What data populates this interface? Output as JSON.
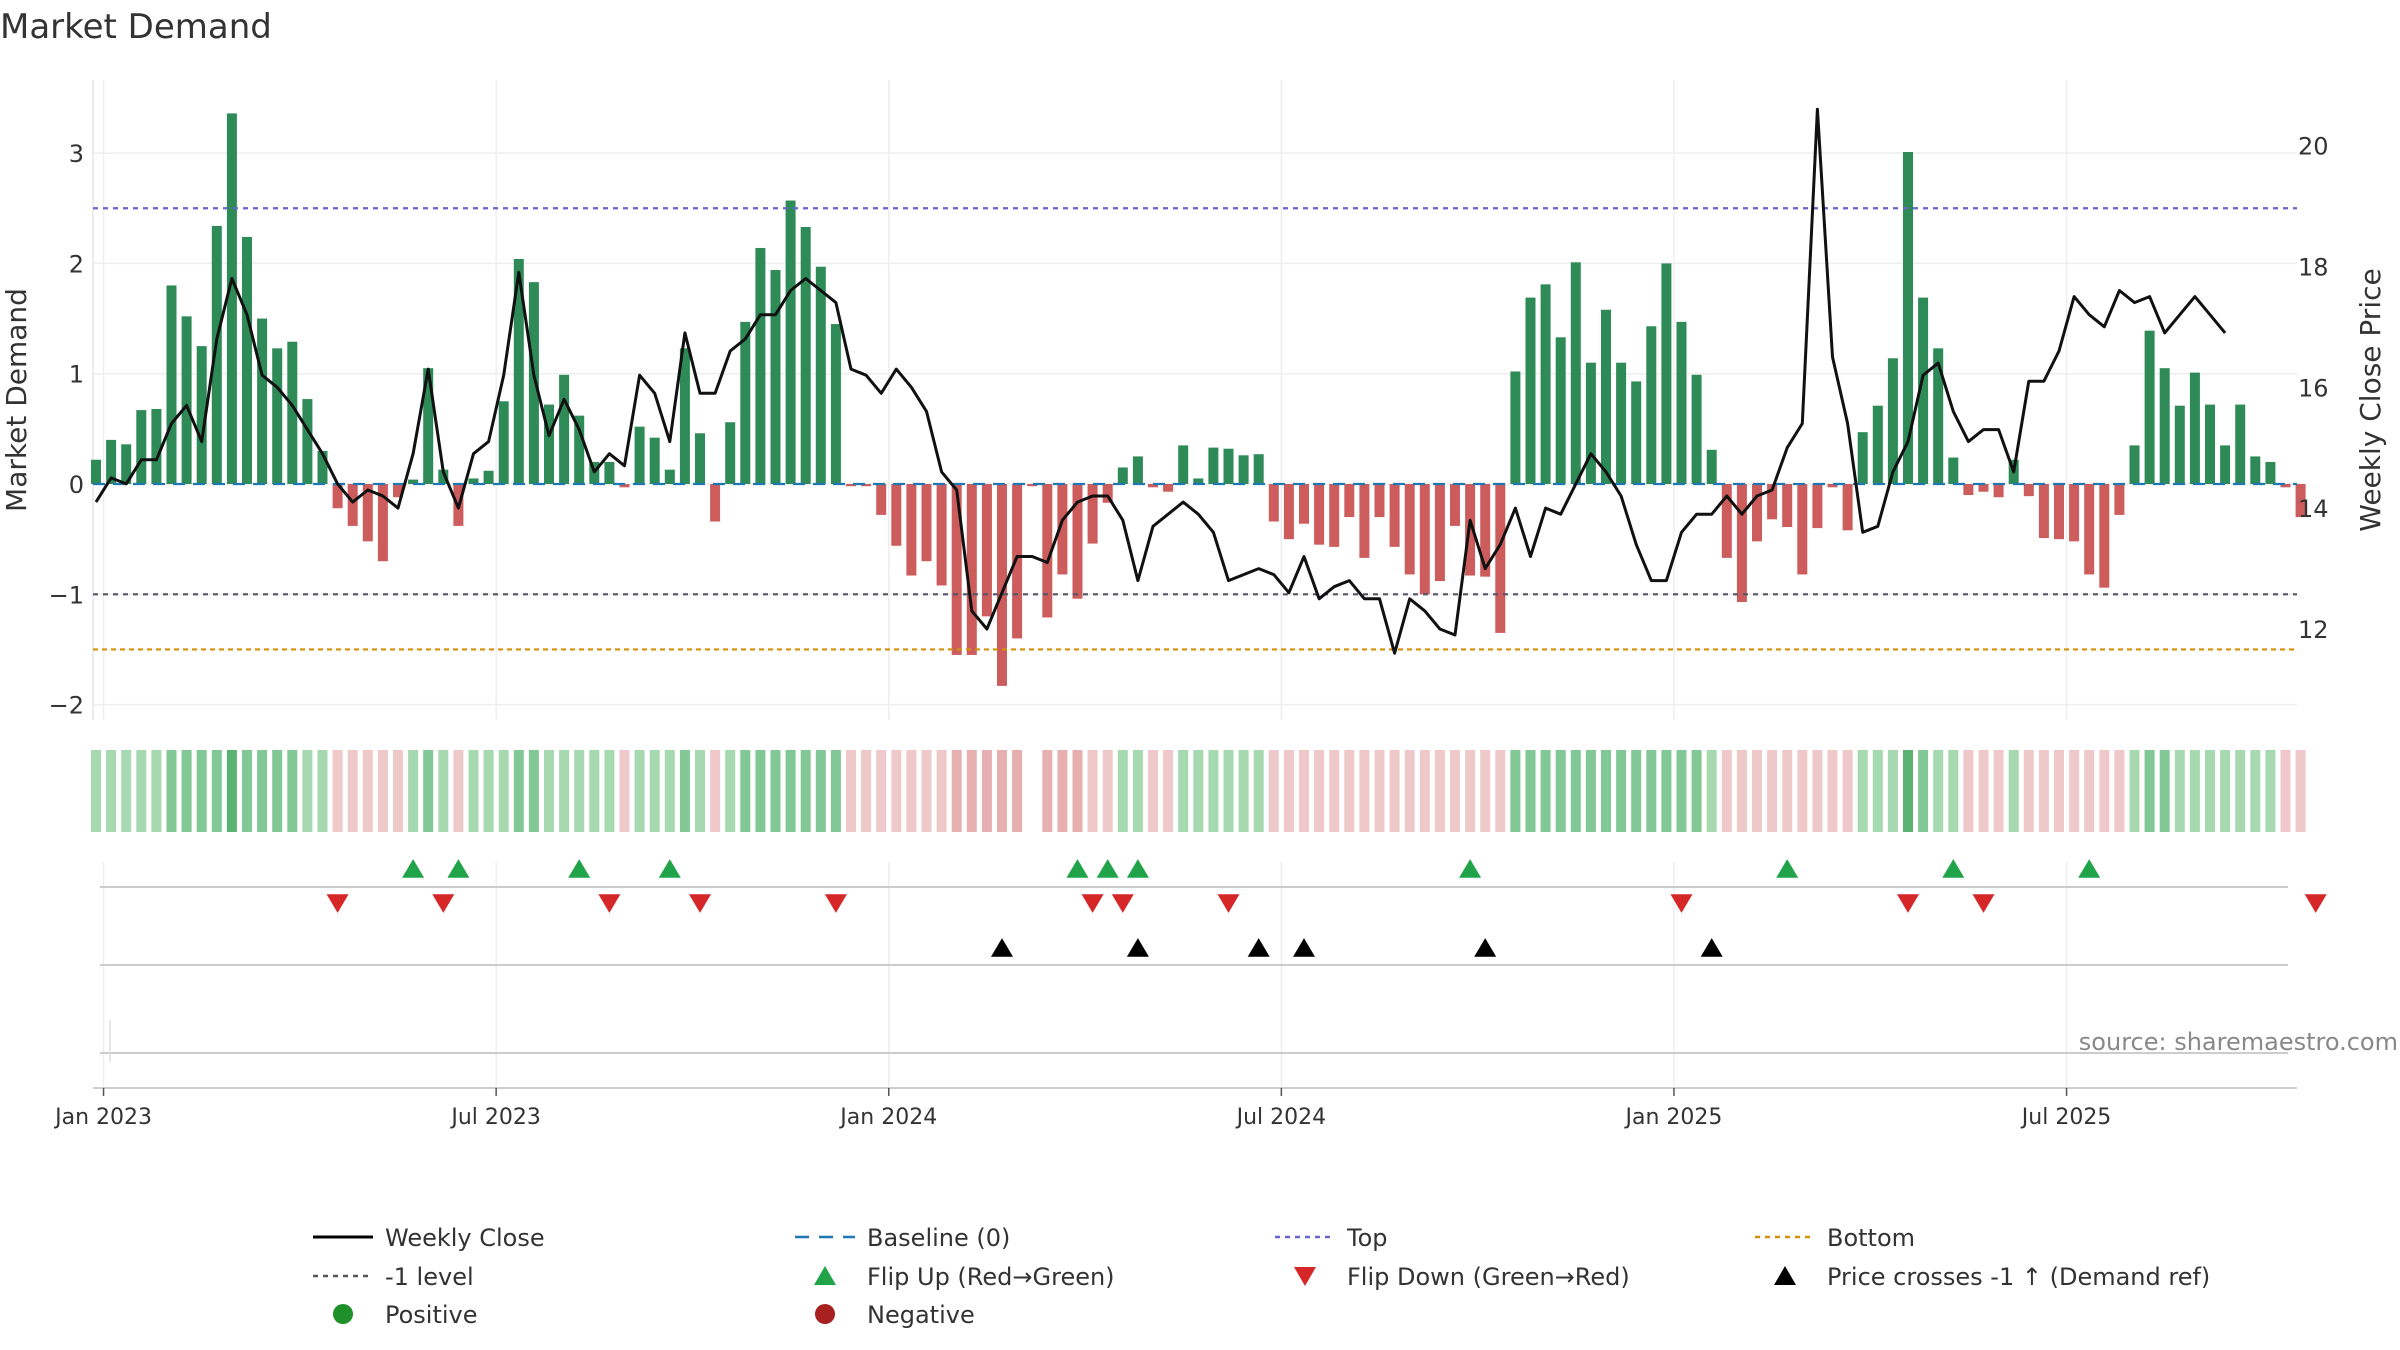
{
  "chart_data": {
    "type": "bar",
    "title": "Market Demand",
    "ylabel": "Market Demand",
    "y2label": "Weekly Close Price",
    "ylim": [
      -2.2,
      3.6
    ],
    "y2lim": [
      10.8,
      21.2
    ],
    "yticks": [
      -2,
      -1,
      0,
      1,
      2,
      3
    ],
    "y2ticks": [
      12,
      14,
      16,
      18,
      20
    ],
    "xticks": [
      {
        "label": "Jan 2023",
        "week": 0.5
      },
      {
        "label": "Jul 2023",
        "week": 26.5
      },
      {
        "label": "Jan 2024",
        "week": 52.5
      },
      {
        "label": "Jul 2024",
        "week": 78.5
      },
      {
        "label": "Jan 2025",
        "week": 104.5
      },
      {
        "label": "Jul 2025",
        "week": 130.5
      }
    ],
    "reference_lines": {
      "top": 2.5,
      "minus_one": -1,
      "bottom": -1.5,
      "baseline": 0
    },
    "demand": [
      0.22,
      0.4,
      0.36,
      0.67,
      0.68,
      1.8,
      1.52,
      1.25,
      2.34,
      3.36,
      2.24,
      1.5,
      1.23,
      1.29,
      0.77,
      0.3,
      -0.22,
      -0.38,
      -0.52,
      -0.7,
      -0.12,
      0.04,
      1.05,
      0.13,
      -0.38,
      0.05,
      0.12,
      0.75,
      2.04,
      1.83,
      0.72,
      0.99,
      0.62,
      0.2,
      0.2,
      -0.03,
      0.52,
      0.42,
      0.13,
      1.23,
      0.46,
      -0.34,
      0.56,
      1.47,
      2.14,
      1.94,
      2.57,
      2.33,
      1.97,
      1.45,
      -0.02,
      -0.02,
      -0.28,
      -0.56,
      -0.83,
      -0.7,
      -0.92,
      -1.55,
      -1.55,
      -1.2,
      -1.83,
      -1.4,
      -0.02,
      -1.21,
      -0.82,
      -1.04,
      -0.54,
      -0.17,
      0.15,
      0.25,
      -0.03,
      -0.07,
      0.35,
      0.05,
      0.33,
      0.32,
      0.26,
      0.27,
      -0.34,
      -0.5,
      -0.36,
      -0.55,
      -0.57,
      -0.3,
      -0.67,
      -0.3,
      -0.57,
      -0.82,
      -1.0,
      -0.88,
      -0.38,
      -0.83,
      -0.84,
      -1.35,
      1.02,
      1.69,
      1.81,
      1.33,
      2.01,
      1.1,
      1.58,
      1.1,
      0.93,
      1.43,
      2.0,
      1.47,
      0.99,
      0.31,
      -0.67,
      -1.07,
      -0.52,
      -0.32,
      -0.39,
      -0.82,
      -0.4,
      -0.03,
      -0.42,
      0.47,
      0.71,
      1.14,
      3.01,
      1.69,
      1.23,
      0.24,
      -0.1,
      -0.07,
      -0.12,
      0.22,
      -0.11,
      -0.49,
      -0.5,
      -0.52,
      -0.82,
      -0.94,
      -0.28,
      0.35,
      1.39,
      1.05,
      0.71,
      1.01,
      0.72,
      0.35,
      0.72,
      0.25,
      0.2,
      -0.03,
      -0.3
    ],
    "weekly_close": [
      14.1,
      14.5,
      14.4,
      14.8,
      14.8,
      15.4,
      15.7,
      15.1,
      16.8,
      17.8,
      17.2,
      16.2,
      16.0,
      15.7,
      15.3,
      14.9,
      14.4,
      14.1,
      14.3,
      14.2,
      14.0,
      14.9,
      16.3,
      14.6,
      14.0,
      14.9,
      15.1,
      16.2,
      17.9,
      16.2,
      15.2,
      15.8,
      15.3,
      14.6,
      14.9,
      14.7,
      16.2,
      15.9,
      15.1,
      16.9,
      15.9,
      15.9,
      16.6,
      16.8,
      17.2,
      17.2,
      17.6,
      17.8,
      17.6,
      17.4,
      16.3,
      16.2,
      15.9,
      16.3,
      16.0,
      15.6,
      14.6,
      14.3,
      12.3,
      12.0,
      12.6,
      13.2,
      13.2,
      13.1,
      13.8,
      14.1,
      14.2,
      14.2,
      13.8,
      12.8,
      13.7,
      13.9,
      14.1,
      13.9,
      13.6,
      12.8,
      12.9,
      13.0,
      12.9,
      12.6,
      13.2,
      12.5,
      12.7,
      12.8,
      12.5,
      12.5,
      11.6,
      12.5,
      12.3,
      12.0,
      11.9,
      13.8,
      13.0,
      13.4,
      14.0,
      13.2,
      14.0,
      13.9,
      14.4,
      14.9,
      14.6,
      14.2,
      13.4,
      12.8,
      12.8,
      13.6,
      13.9,
      13.9,
      14.2,
      13.9,
      14.2,
      14.3,
      15.0,
      15.4,
      20.6,
      16.5,
      15.4,
      13.6,
      13.7,
      14.6,
      15.1,
      16.2,
      16.4,
      15.6,
      15.1,
      15.3,
      15.3,
      14.6,
      16.1,
      16.1,
      16.6,
      17.5,
      17.2,
      17.0,
      17.6,
      17.4,
      17.5,
      16.9,
      17.2,
      17.5,
      17.2,
      16.9
    ],
    "flip_up_weeks": [
      21,
      24,
      32,
      38,
      65,
      67,
      69,
      91,
      112,
      123,
      132
    ],
    "flip_down_weeks": [
      16,
      23,
      34,
      40,
      49,
      66,
      68,
      75,
      105,
      120,
      125,
      147
    ],
    "price_cross_weeks": [
      60,
      69,
      77,
      80,
      92,
      107
    ],
    "strip_levels": [
      2,
      2,
      2,
      2,
      2,
      3,
      3,
      3,
      3,
      4,
      3,
      3,
      3,
      3,
      2,
      2,
      1,
      1,
      1,
      1,
      1,
      2,
      3,
      2,
      1,
      2,
      2,
      2,
      3,
      3,
      2,
      2,
      2,
      2,
      2,
      1,
      2,
      2,
      2,
      3,
      2,
      1,
      2,
      3,
      3,
      3,
      3,
      3,
      3,
      3,
      1,
      1,
      1,
      1,
      1,
      1,
      1,
      2,
      2,
      2,
      2,
      2,
      0,
      2,
      2,
      2,
      1,
      1,
      2,
      2,
      1,
      1,
      2,
      2,
      2,
      2,
      2,
      2,
      1,
      1,
      1,
      1,
      1,
      1,
      1,
      1,
      1,
      1,
      1,
      1,
      1,
      1,
      1,
      1,
      3,
      3,
      3,
      3,
      3,
      3,
      3,
      3,
      3,
      3,
      3,
      3,
      3,
      2,
      1,
      1,
      1,
      1,
      1,
      1,
      1,
      1,
      1,
      2,
      2,
      2,
      4,
      3,
      2,
      2,
      1,
      1,
      1,
      2,
      1,
      1,
      1,
      1,
      1,
      1,
      1,
      2,
      3,
      3,
      2,
      2,
      2,
      2,
      2,
      2,
      2,
      1,
      1
    ],
    "source_note": "source: sharemaestro.com",
    "legend": [
      {
        "label": "Weekly Close",
        "kind": "line-solid",
        "color": "#000000"
      },
      {
        "label": "Baseline (0)",
        "kind": "line-dash",
        "color": "#1f77b4"
      },
      {
        "label": "Top",
        "kind": "line-dot",
        "color": "#6666cc"
      },
      {
        "label": "Bottom",
        "kind": "line-dot",
        "color": "#d4900a"
      },
      {
        "label": "-1 level",
        "kind": "line-dot",
        "color": "#555555"
      },
      {
        "label": "Flip Up (Red→Green)",
        "kind": "tri-up",
        "color": "#21a34a"
      },
      {
        "label": "Flip Down (Green→Red)",
        "kind": "tri-down",
        "color": "#d62728"
      },
      {
        "label": "Price crosses -1 ↑ (Demand ref)",
        "kind": "tri-up",
        "color": "#000000"
      },
      {
        "label": "Positive",
        "kind": "dot",
        "color": "#1f8f2a"
      },
      {
        "label": "Negative",
        "kind": "dot",
        "color": "#a82020"
      }
    ],
    "colors": {
      "positive_bar": "#2e8b57",
      "negative_bar": "#cd5c5c",
      "strip_green": [
        "#c6e7cb",
        "#a6d9b0",
        "#82c896",
        "#5ab373"
      ],
      "strip_red": [
        "#efc9c9",
        "#e6b0b0",
        "#dc9c9c"
      ]
    }
  }
}
